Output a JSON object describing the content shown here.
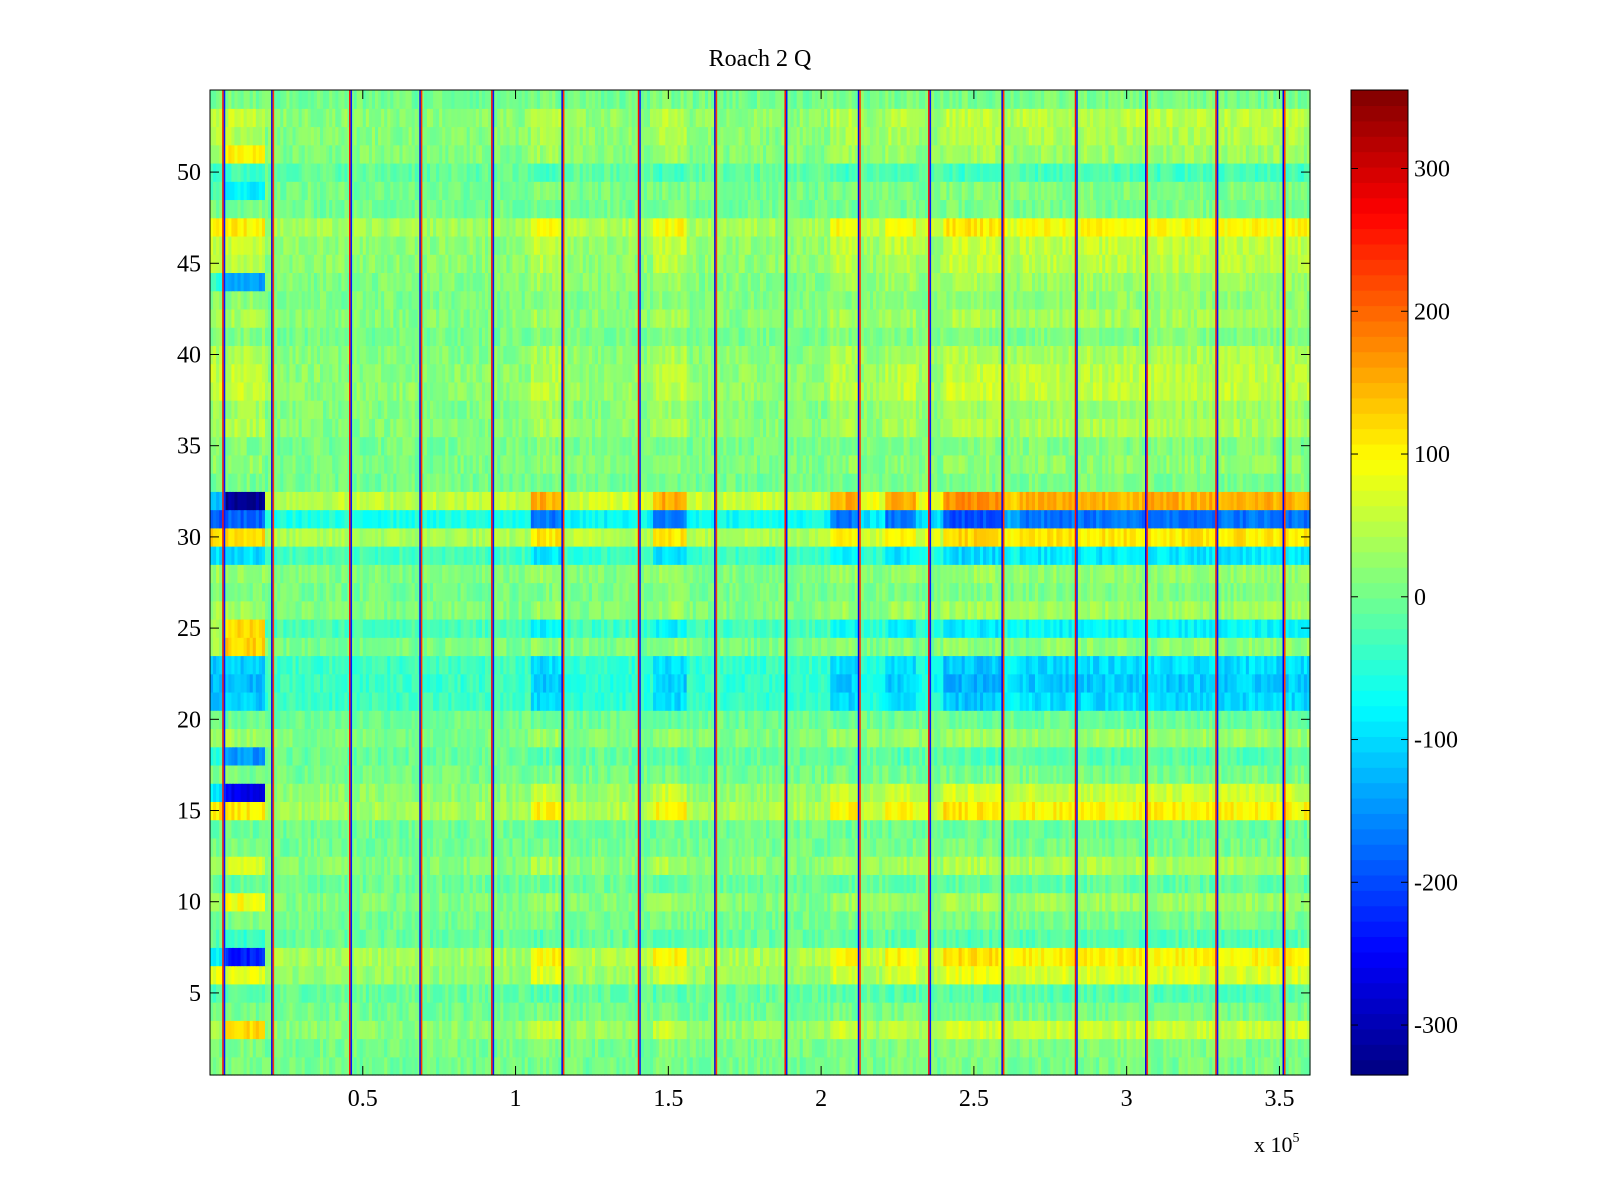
{
  "chart_data": {
    "type": "heatmap",
    "title": "Roach 2 Q",
    "xlabel": "",
    "ylabel": "",
    "x_multiplier_label": "x 10",
    "x_multiplier_exponent": "5",
    "xlim": [
      0,
      3.6
    ],
    "ylim": [
      0.5,
      54.5
    ],
    "x_ticks": [
      0.5,
      1,
      1.5,
      2,
      2.5,
      3,
      3.5
    ],
    "x_tick_labels": [
      "0.5",
      "1",
      "1.5",
      "2",
      "2.5",
      "3",
      "3.5"
    ],
    "y_ticks": [
      5,
      10,
      15,
      20,
      25,
      30,
      35,
      40,
      45,
      50
    ],
    "y_tick_labels": [
      "5",
      "10",
      "15",
      "20",
      "25",
      "30",
      "35",
      "40",
      "45",
      "50"
    ],
    "rows": 54,
    "colormap": "jet",
    "colorbar": {
      "clim": [
        -335,
        355
      ],
      "ticks": [
        -300,
        -200,
        -100,
        0,
        100,
        200,
        300
      ],
      "tick_labels": [
        "-300",
        "-200",
        "-100",
        "0",
        "100",
        "200",
        "300"
      ]
    },
    "vertical_spike_columns": [
      0.045,
      0.205,
      0.46,
      0.69,
      0.925,
      1.155,
      1.405,
      1.655,
      1.885,
      2.125,
      2.355,
      2.595,
      2.835,
      3.065,
      3.295,
      3.515
    ],
    "active_segments": [
      [
        0.0,
        0.18,
        1.1
      ],
      [
        0.18,
        1.05,
        0.35
      ],
      [
        1.05,
        1.15,
        1.0
      ],
      [
        1.15,
        1.45,
        0.45
      ],
      [
        1.45,
        1.56,
        1.0
      ],
      [
        1.56,
        2.03,
        0.4
      ],
      [
        2.03,
        2.13,
        1.0
      ],
      [
        2.13,
        2.21,
        0.55
      ],
      [
        2.21,
        2.31,
        1.0
      ],
      [
        2.31,
        2.4,
        0.6
      ],
      [
        2.4,
        2.6,
        1.15
      ],
      [
        2.6,
        2.65,
        0.8
      ],
      [
        2.65,
        3.6,
        1.0
      ]
    ],
    "row_profiles": {
      "1": 5,
      "2": 10,
      "3": 60,
      "4": 5,
      "5": -20,
      "6": 70,
      "7": 100,
      "8": -20,
      "9": 5,
      "10": 30,
      "11": -10,
      "12": 40,
      "13": 5,
      "14": -5,
      "15": 100,
      "16": 60,
      "17": 5,
      "18": -20,
      "19": 30,
      "20": -5,
      "21": -100,
      "22": -110,
      "23": -100,
      "24": 20,
      "25": -80,
      "26": 30,
      "27": 10,
      "28": 25,
      "29": -90,
      "30": 110,
      "31": -170,
      "32": 150,
      "33": 5,
      "34": 20,
      "35": 10,
      "36": 40,
      "37": 30,
      "38": 55,
      "39": 50,
      "40": 40,
      "41": 10,
      "42": 35,
      "43": 20,
      "44": 30,
      "45": 50,
      "46": 55,
      "47": 95,
      "48": 5,
      "49": 10,
      "50": -30,
      "51": 30,
      "52": 40,
      "53": 50,
      "54": 5
    },
    "early_overrides": {
      "3": 120,
      "7": -230,
      "8": -40,
      "10": 90,
      "12": 70,
      "16": -260,
      "18": -150,
      "24": 130,
      "25": 120,
      "32": -320,
      "44": -140,
      "49": -80,
      "51": 100
    }
  }
}
